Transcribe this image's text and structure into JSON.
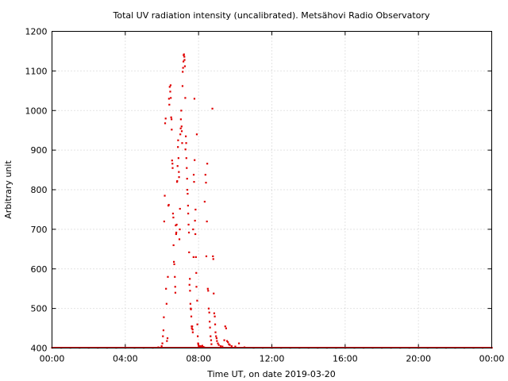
{
  "chart_data": {
    "type": "scatter",
    "title": "Total UV radiation intensity (uncalibrated). Metsähovi Radio Observatory",
    "xlabel": "Time UT, on date 2019-03-20",
    "ylabel": "Arbitrary unit",
    "xlim": [
      0,
      24
    ],
    "ylim": [
      400,
      1200
    ],
    "x_tick_values": [
      0,
      4,
      8,
      12,
      16,
      20,
      24
    ],
    "x_tick_labels": [
      "00:00",
      "04:00",
      "08:00",
      "12:00",
      "16:00",
      "20:00",
      "00:00"
    ],
    "y_tick_values": [
      400,
      500,
      600,
      700,
      800,
      900,
      1000,
      1100,
      1200
    ],
    "y_tick_labels": [
      "400",
      "500",
      "600",
      "700",
      "800",
      "900",
      "1000",
      "1100",
      "1200"
    ],
    "grid": true,
    "legend": "none",
    "series": [
      {
        "color": "#e00000",
        "points": [
          [
            0.0,
            401
          ],
          [
            0.5,
            401
          ],
          [
            1.0,
            401
          ],
          [
            1.5,
            401
          ],
          [
            2.0,
            401
          ],
          [
            2.5,
            401
          ],
          [
            3.0,
            401
          ],
          [
            3.5,
            401
          ],
          [
            4.0,
            401
          ],
          [
            4.5,
            401
          ],
          [
            5.0,
            401
          ],
          [
            5.5,
            401
          ],
          [
            5.8,
            402
          ],
          [
            5.98,
            405
          ],
          [
            6.02,
            412
          ],
          [
            6.05,
            430
          ],
          [
            6.08,
            445
          ],
          [
            6.1,
            478
          ],
          [
            6.12,
            720
          ],
          [
            6.15,
            785
          ],
          [
            6.17,
            968
          ],
          [
            6.2,
            980
          ],
          [
            6.22,
            550
          ],
          [
            6.25,
            512
          ],
          [
            6.27,
            418
          ],
          [
            6.3,
            425
          ],
          [
            6.32,
            580
          ],
          [
            6.35,
            760
          ],
          [
            6.37,
            762
          ],
          [
            6.38,
            1030
          ],
          [
            6.4,
            1015
          ],
          [
            6.42,
            1060
          ],
          [
            6.45,
            1048
          ],
          [
            6.47,
            1064
          ],
          [
            6.48,
            1032
          ],
          [
            6.5,
            983
          ],
          [
            6.52,
            978
          ],
          [
            6.53,
            952
          ],
          [
            6.55,
            874
          ],
          [
            6.57,
            866
          ],
          [
            6.58,
            855
          ],
          [
            6.6,
            740
          ],
          [
            6.62,
            730
          ],
          [
            6.63,
            660
          ],
          [
            6.65,
            618
          ],
          [
            6.67,
            612
          ],
          [
            6.7,
            580
          ],
          [
            6.72,
            555
          ],
          [
            6.73,
            540
          ],
          [
            6.75,
            710
          ],
          [
            6.77,
            688
          ],
          [
            6.78,
            692
          ],
          [
            6.8,
            712
          ],
          [
            6.82,
            820
          ],
          [
            6.83,
            822
          ],
          [
            6.85,
            860
          ],
          [
            6.87,
            908
          ],
          [
            6.88,
            925
          ],
          [
            6.9,
            880
          ],
          [
            6.92,
            845
          ],
          [
            6.93,
            832
          ],
          [
            6.95,
            675
          ],
          [
            6.97,
            700
          ],
          [
            6.98,
            752
          ],
          [
            7.0,
            940
          ],
          [
            7.02,
            955
          ],
          [
            7.03,
            978
          ],
          [
            7.05,
            1000
          ],
          [
            7.07,
            960
          ],
          [
            7.08,
            948
          ],
          [
            7.1,
            918
          ],
          [
            7.12,
            1062
          ],
          [
            7.13,
            1098
          ],
          [
            7.15,
            1108
          ],
          [
            7.17,
            1124
          ],
          [
            7.18,
            1140
          ],
          [
            7.2,
            1142
          ],
          [
            7.22,
            1136
          ],
          [
            7.23,
            1128
          ],
          [
            7.25,
            1112
          ],
          [
            7.27,
            1032
          ],
          [
            7.28,
            902
          ],
          [
            7.3,
            935
          ],
          [
            7.32,
            918
          ],
          [
            7.33,
            880
          ],
          [
            7.35,
            855
          ],
          [
            7.37,
            828
          ],
          [
            7.38,
            800
          ],
          [
            7.4,
            790
          ],
          [
            7.42,
            760
          ],
          [
            7.43,
            740
          ],
          [
            7.45,
            712
          ],
          [
            7.47,
            692
          ],
          [
            7.48,
            642
          ],
          [
            7.5,
            560
          ],
          [
            7.52,
            575
          ],
          [
            7.53,
            545
          ],
          [
            7.55,
            512
          ],
          [
            7.57,
            500
          ],
          [
            7.58,
            498
          ],
          [
            7.6,
            480
          ],
          [
            7.62,
            455
          ],
          [
            7.63,
            450
          ],
          [
            7.65,
            455
          ],
          [
            7.67,
            447
          ],
          [
            7.68,
            440
          ],
          [
            7.7,
            700
          ],
          [
            7.72,
            630
          ],
          [
            7.73,
            838
          ],
          [
            7.75,
            820
          ],
          [
            7.77,
            1030
          ],
          [
            7.78,
            875
          ],
          [
            7.8,
            722
          ],
          [
            7.82,
            688
          ],
          [
            7.83,
            750
          ],
          [
            7.85,
            630
          ],
          [
            7.87,
            590
          ],
          [
            7.88,
            555
          ],
          [
            7.9,
            940
          ],
          [
            7.92,
            520
          ],
          [
            7.93,
            460
          ],
          [
            7.95,
            430
          ],
          [
            7.97,
            412
          ],
          [
            7.98,
            410
          ],
          [
            8.0,
            406
          ],
          [
            8.05,
            404
          ],
          [
            8.1,
            405
          ],
          [
            8.15,
            404
          ],
          [
            8.2,
            406
          ],
          [
            8.25,
            403
          ],
          [
            8.3,
            402
          ],
          [
            8.33,
            770
          ],
          [
            8.37,
            838
          ],
          [
            8.4,
            818
          ],
          [
            8.42,
            632
          ],
          [
            8.45,
            720
          ],
          [
            8.47,
            866
          ],
          [
            8.5,
            550
          ],
          [
            8.52,
            545
          ],
          [
            8.55,
            500
          ],
          [
            8.58,
            490
          ],
          [
            8.6,
            467
          ],
          [
            8.62,
            452
          ],
          [
            8.65,
            430
          ],
          [
            8.68,
            420
          ],
          [
            8.7,
            410
          ],
          [
            8.75,
            1005
          ],
          [
            8.78,
            632
          ],
          [
            8.8,
            625
          ],
          [
            8.82,
            538
          ],
          [
            8.85,
            488
          ],
          [
            8.88,
            480
          ],
          [
            8.9,
            460
          ],
          [
            8.92,
            440
          ],
          [
            8.95,
            430
          ],
          [
            8.98,
            425
          ],
          [
            9.0,
            418
          ],
          [
            9.05,
            412
          ],
          [
            9.1,
            408
          ],
          [
            9.2,
            405
          ],
          [
            9.3,
            404
          ],
          [
            9.4,
            420
          ],
          [
            9.45,
            455
          ],
          [
            9.5,
            450
          ],
          [
            9.55,
            418
          ],
          [
            9.6,
            415
          ],
          [
            9.65,
            410
          ],
          [
            9.7,
            408
          ],
          [
            9.8,
            405
          ],
          [
            10.0,
            404
          ],
          [
            10.2,
            412
          ],
          [
            10.5,
            402
          ],
          [
            11.0,
            401
          ],
          [
            11.5,
            401
          ],
          [
            12.0,
            401
          ],
          [
            12.5,
            401
          ],
          [
            13.0,
            401
          ],
          [
            13.5,
            401
          ],
          [
            14.0,
            401
          ],
          [
            14.5,
            401
          ],
          [
            15.0,
            401
          ],
          [
            15.5,
            401
          ],
          [
            16.0,
            401
          ],
          [
            16.5,
            401
          ],
          [
            17.0,
            401
          ],
          [
            17.5,
            401
          ],
          [
            18.0,
            401
          ],
          [
            18.5,
            401
          ],
          [
            19.0,
            401
          ],
          [
            19.5,
            401
          ],
          [
            20.0,
            401
          ],
          [
            20.5,
            401
          ],
          [
            21.0,
            401
          ],
          [
            21.5,
            401
          ],
          [
            22.0,
            401
          ],
          [
            22.5,
            401
          ],
          [
            23.0,
            401
          ],
          [
            23.5,
            401
          ],
          [
            24.0,
            401
          ]
        ]
      }
    ]
  }
}
